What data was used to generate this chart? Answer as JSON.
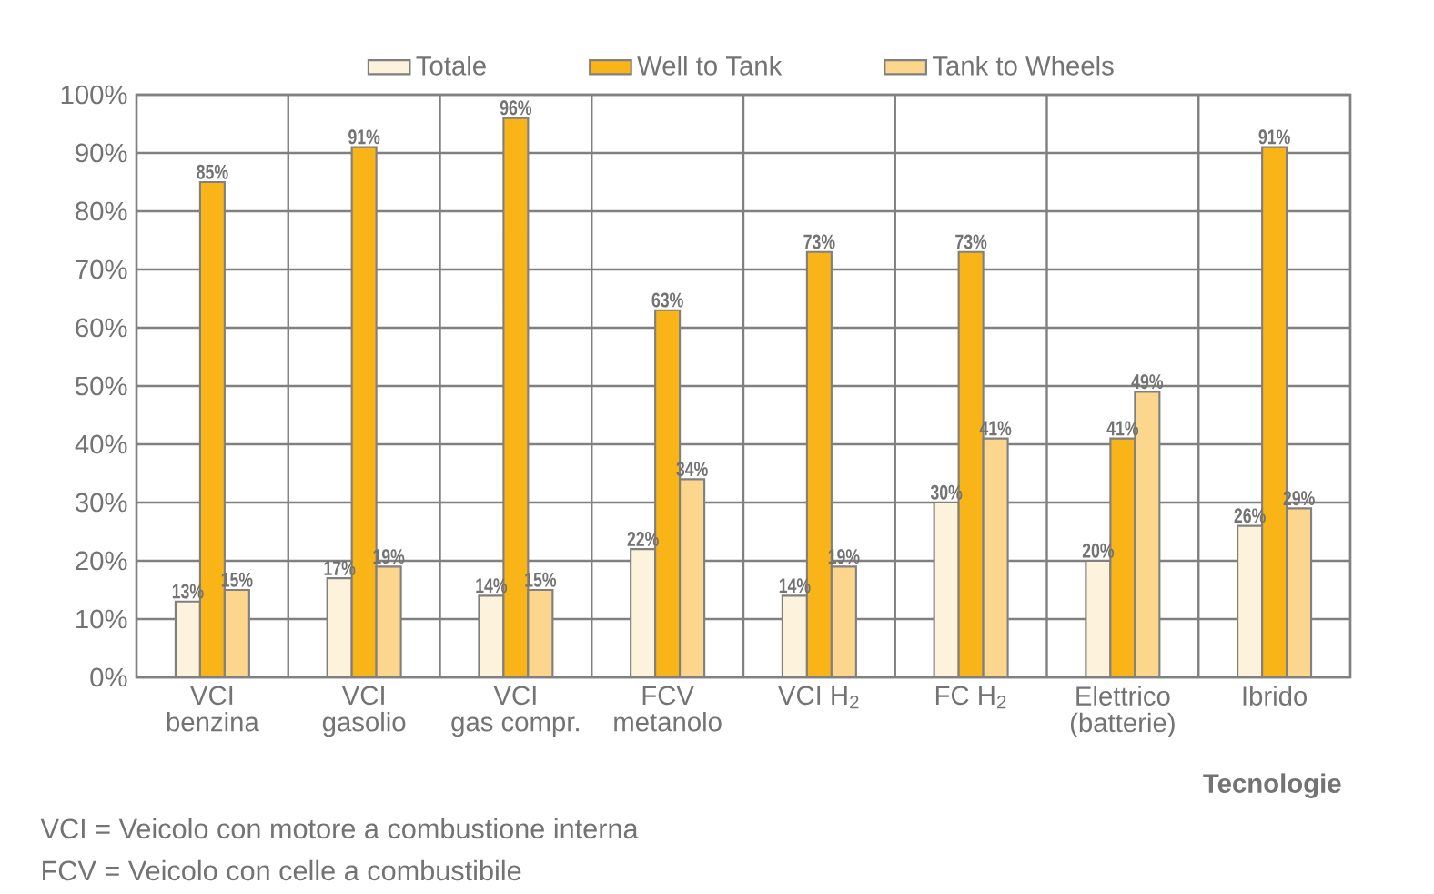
{
  "chart_data": {
    "type": "bar",
    "xlabel": "Tecnologie",
    "categories": [
      "VCI\nbenzina",
      "VCI\ngasolio",
      "VCI\ngas compr.",
      "FCV\nmetanolo",
      "VCI H$_{2}$",
      "FC H$_{2}$",
      "Elettrico\n(batterie)",
      "Ibrido"
    ],
    "series": [
      {
        "name": "Totale",
        "color": "#fdf3dc",
        "values": [
          13,
          17,
          14,
          22,
          14,
          30,
          20,
          26
        ],
        "value_labels": [
          "13%",
          "17%",
          "14%",
          "22%",
          "14%",
          "30%",
          "20%",
          "26%"
        ]
      },
      {
        "name": "Well to Tank",
        "color": "#f9b418",
        "values": [
          85,
          91,
          96,
          63,
          73,
          73,
          41,
          91
        ],
        "value_labels": [
          "85%",
          "91%",
          "96%",
          "63%",
          "73%",
          "73%",
          "41%",
          "91%"
        ]
      },
      {
        "name": "Tank to Wheels",
        "color": "#fdd68e",
        "values": [
          15,
          19,
          15,
          34,
          19,
          41,
          49,
          29
        ],
        "value_labels": [
          "15%",
          "19%",
          "15%",
          "34%",
          "19%",
          "41%",
          "49%",
          "29%"
        ]
      }
    ],
    "ylim": [
      0,
      100
    ],
    "yticks": [
      {
        "value": 0,
        "label": "0%"
      },
      {
        "value": 10,
        "label": "10%"
      },
      {
        "value": 20,
        "label": "20%"
      },
      {
        "value": 30,
        "label": "30%"
      },
      {
        "value": 40,
        "label": "40%"
      },
      {
        "value": 50,
        "label": "50%"
      },
      {
        "value": 60,
        "label": "60%"
      },
      {
        "value": 70,
        "label": "70%"
      },
      {
        "value": 80,
        "label": "80%"
      },
      {
        "value": 90,
        "label": "90%"
      },
      {
        "value": 100,
        "label": "100%"
      }
    ],
    "grid": true,
    "legend": "top",
    "annotations": [
      "VCI = Veicolo con motore a combustione interna",
      "FCV = Veicolo con celle a combustibile"
    ]
  }
}
